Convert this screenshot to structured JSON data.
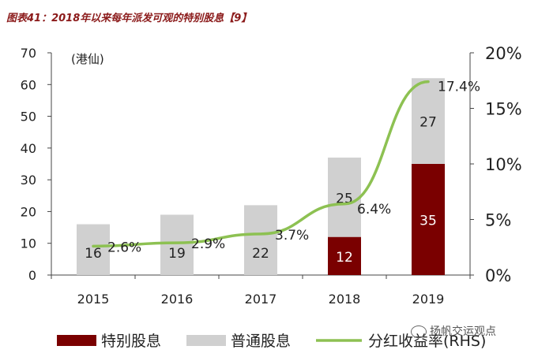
{
  "figure_title": "图表41：2018年以来每年派发可观的特别股息【9】",
  "watermark": "扬帆交运观点",
  "chart_data": {
    "type": "bar",
    "stacked": true,
    "categories": [
      "2015",
      "2016",
      "2017",
      "2018",
      "2019"
    ],
    "unit_label": "(港仙)",
    "ylim": [
      0,
      70
    ],
    "yticks": [
      0,
      10,
      20,
      30,
      40,
      50,
      60,
      70
    ],
    "y2lim": [
      0,
      20
    ],
    "y2ticks": [
      "0%",
      "5%",
      "10%",
      "15%",
      "20%"
    ],
    "y2tick_values": [
      0,
      5,
      10,
      15,
      20
    ],
    "series": [
      {
        "name": "特别股息",
        "type": "bar",
        "color": "#7a0000",
        "values": [
          0,
          0,
          0,
          12,
          35
        ],
        "labels": [
          "",
          "",
          "",
          "12",
          "35"
        ]
      },
      {
        "name": "普通股息",
        "type": "bar",
        "color": "#d0d0d0",
        "values": [
          16,
          19,
          22,
          25,
          27
        ],
        "labels": [
          "16",
          "19",
          "22",
          "25",
          "27"
        ]
      },
      {
        "name": "分红收益率(RHS)",
        "type": "line",
        "axis": "right",
        "color": "#8dc152",
        "values": [
          2.6,
          2.9,
          3.7,
          6.4,
          17.4
        ],
        "labels": [
          "2.6%",
          "2.9%",
          "3.7%",
          "6.4%",
          "17.4%"
        ]
      }
    ]
  }
}
